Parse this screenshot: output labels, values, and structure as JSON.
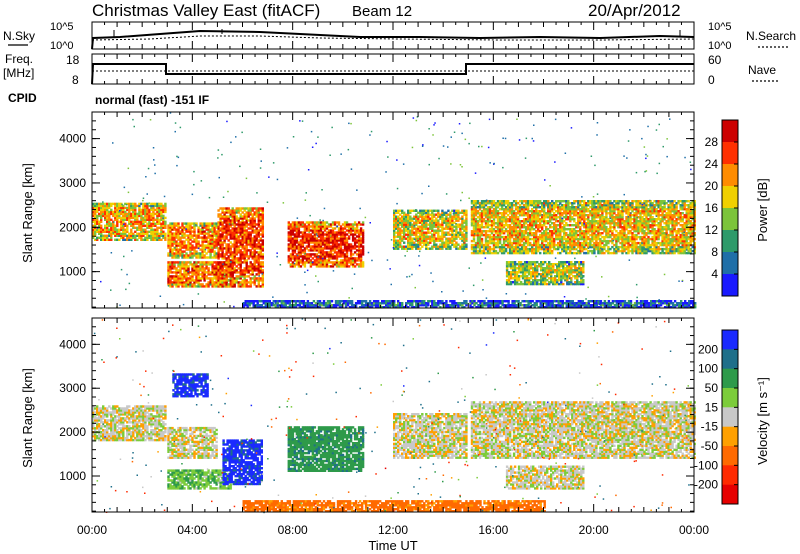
{
  "header": {
    "station": "Christmas Valley East (fitACF)",
    "beam": "Beam 12",
    "date": "20/Apr/2012"
  },
  "noise_panel": {
    "left_label": "N.Sky",
    "right_label": "N.Search",
    "left_ticks": [
      "10^5",
      "10^0"
    ],
    "right_ticks": [
      "10^5",
      "10^0"
    ]
  },
  "freq_panel": {
    "label": "Freq.",
    "unit": "[MHz]",
    "left_ticks": [
      "18",
      "8"
    ],
    "right_ticks": [
      "60",
      "0"
    ],
    "right_label": "Nave",
    "mode_label": "CPID",
    "mode_text": "normal (fast) -151 IF"
  },
  "chart_data": [
    {
      "type": "heatmap",
      "quantity": "power",
      "ylabel": "Slant Range [km]",
      "xlabel": "",
      "x_tick_labels": [
        "00:00",
        "04:00",
        "08:00",
        "12:00",
        "16:00",
        "20:00",
        "00:00"
      ],
      "y_ticks": [
        1000,
        2000,
        3000,
        4000
      ],
      "ylim": [
        180,
        4600
      ],
      "xlim_hours": [
        0,
        24
      ],
      "colorbar": {
        "label": "Power [dB]",
        "ticks": [
          4,
          8,
          12,
          16,
          20,
          24,
          28
        ],
        "range": [
          0,
          32
        ],
        "colors": [
          "#1a1aff",
          "#1f6fa8",
          "#2e9a6a",
          "#7cc43a",
          "#f0d000",
          "#ff8c00",
          "#ff3000",
          "#cc0000"
        ]
      },
      "echo_regions": [
        {
          "t0": 0.0,
          "t1": 2.9,
          "r0": 1700,
          "r1": 2550,
          "power": 20
        },
        {
          "t0": 3.0,
          "t1": 5.0,
          "r0": 1300,
          "r1": 2100,
          "power": 22
        },
        {
          "t0": 3.0,
          "t1": 5.6,
          "r0": 650,
          "r1": 1200,
          "power": 24
        },
        {
          "t0": 5.0,
          "t1": 6.8,
          "r0": 650,
          "r1": 2450,
          "power": 26
        },
        {
          "t0": 7.8,
          "t1": 10.8,
          "r0": 1100,
          "r1": 2100,
          "power": 27
        },
        {
          "t0": 12.0,
          "t1": 14.9,
          "r0": 1500,
          "r1": 2400,
          "power": 18
        },
        {
          "t0": 15.1,
          "t1": 24.0,
          "r0": 1400,
          "r1": 2600,
          "power": 19
        },
        {
          "t0": 16.5,
          "t1": 19.6,
          "r0": 700,
          "r1": 1200,
          "power": 16
        },
        {
          "t0": 6.0,
          "t1": 24.0,
          "r0": 180,
          "r1": 330,
          "power": 6
        }
      ]
    },
    {
      "type": "heatmap",
      "quantity": "velocity",
      "ylabel": "Slant Range [km]",
      "xlabel": "Time UT",
      "x_tick_labels": [
        "00:00",
        "04:00",
        "08:00",
        "12:00",
        "16:00",
        "20:00",
        "00:00"
      ],
      "y_ticks": [
        1000,
        2000,
        3000,
        4000
      ],
      "ylim": [
        180,
        4600
      ],
      "xlim_hours": [
        0,
        24
      ],
      "colorbar": {
        "label": "Velocity [m s⁻¹]",
        "ticks": [
          200,
          100,
          50,
          15,
          -15,
          -50,
          -100,
          -200
        ],
        "colors": [
          "#1a2aff",
          "#1f6f8a",
          "#2e9a4a",
          "#7ccc3a",
          "#c8c8c8",
          "#ffa000",
          "#ff6a00",
          "#ff2a00",
          "#e60000"
        ]
      },
      "echo_regions": [
        {
          "t0": 0.0,
          "t1": 2.9,
          "r0": 1800,
          "r1": 2600,
          "velocity": 0
        },
        {
          "t0": 3.0,
          "t1": 5.0,
          "r0": 1400,
          "r1": 2100,
          "velocity": 0
        },
        {
          "t0": 3.2,
          "t1": 4.6,
          "r0": 2800,
          "r1": 3300,
          "velocity": 220
        },
        {
          "t0": 3.0,
          "t1": 5.5,
          "r0": 700,
          "r1": 1150,
          "velocity": 40
        },
        {
          "t0": 5.2,
          "t1": 6.8,
          "r0": 800,
          "r1": 1800,
          "velocity": 220
        },
        {
          "t0": 7.8,
          "t1": 10.8,
          "r0": 1100,
          "r1": 2100,
          "velocity": 80
        },
        {
          "t0": 12.0,
          "t1": 14.9,
          "r0": 1400,
          "r1": 2400,
          "velocity": 0
        },
        {
          "t0": 15.1,
          "t1": 24.0,
          "r0": 1400,
          "r1": 2700,
          "velocity": 0
        },
        {
          "t0": 16.5,
          "t1": 19.6,
          "r0": 700,
          "r1": 1200,
          "velocity": 0
        },
        {
          "t0": 6.0,
          "t1": 18.0,
          "r0": 180,
          "r1": 420,
          "velocity": -70
        }
      ]
    }
  ]
}
